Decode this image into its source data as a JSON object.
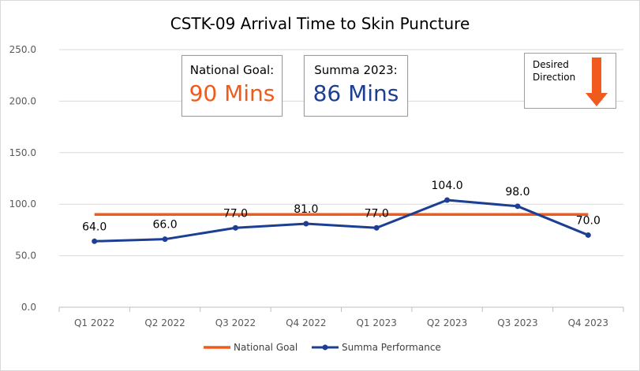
{
  "chart_data": {
    "type": "line",
    "title": "CSTK-09 Arrival Time to Skin Puncture",
    "categories": [
      "Q1 2022",
      "Q2 2022",
      "Q3 2022",
      "Q4 2022",
      "Q1 2023",
      "Q2 2023",
      "Q3 2023",
      "Q4 2023"
    ],
    "ylim": [
      0,
      250
    ],
    "yticks": [
      "0.0",
      "50.0",
      "100.0",
      "150.0",
      "200.0",
      "250.0"
    ],
    "grid": true,
    "legend_position": "bottom",
    "series": [
      {
        "name": "National Goal",
        "values": [
          90,
          90,
          90,
          90,
          90,
          90,
          90,
          90
        ],
        "color": "#f05a1c"
      },
      {
        "name": "Summa Performance",
        "values": [
          64,
          66,
          77,
          81,
          77,
          104,
          98,
          70
        ],
        "color": "#1c3f94",
        "labels": [
          "64.0",
          "66.0",
          "77.0",
          "81.0",
          "77.0",
          "104.0",
          "98.0",
          "70.0"
        ]
      }
    ]
  },
  "callouts": {
    "national_goal_label": "National Goal:",
    "national_goal_value": "90 Mins",
    "national_goal_color": "#f05a1c",
    "summa_label": "Summa 2023:",
    "summa_value": "86 Mins",
    "summa_color": "#1c3f94",
    "direction_text": "Desired Direction",
    "direction_arrow_color": "#f05a1c"
  }
}
